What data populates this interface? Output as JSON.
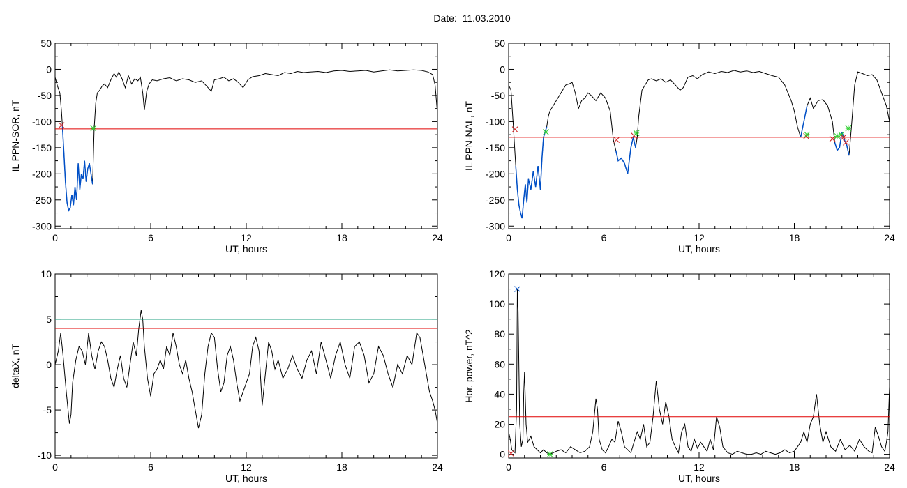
{
  "title": "Date:  11.03.2010",
  "colors": {
    "data": "#000000",
    "threshold": "#e00000",
    "event": "#0050c8",
    "start_marker": "#d02020",
    "end_marker": "#30d030",
    "alt_threshold": "#20a080"
  },
  "chart_data": [
    {
      "id": "sor",
      "type": "line",
      "xlabel": "UT, hours",
      "ylabel": "IL PPN-SOR, nT",
      "xlim": [
        0,
        24
      ],
      "ylim": [
        -305,
        50
      ],
      "xticks": [
        0,
        6,
        12,
        18,
        24
      ],
      "yticks": [
        50,
        0,
        -50,
        -100,
        -150,
        -200,
        -250,
        -300
      ],
      "threshold": -114,
      "series": [
        {
          "x": [
            0,
            0.15,
            0.3,
            0.4,
            0.45,
            0.55,
            0.65,
            0.75,
            0.85,
            0.95,
            1.05,
            1.15,
            1.25,
            1.35,
            1.45,
            1.55,
            1.65,
            1.75,
            1.85,
            1.95,
            2.05,
            2.15,
            2.25,
            2.35,
            2.45,
            2.55,
            2.65,
            2.8,
            2.95,
            3.1,
            3.3,
            3.5,
            3.7,
            3.85,
            4.0,
            4.2,
            4.4,
            4.6,
            4.8,
            5.0,
            5.2,
            5.35,
            5.5,
            5.6,
            5.75,
            5.9,
            6.1,
            6.4,
            6.8,
            7.2,
            7.6,
            8.0,
            8.4,
            8.8,
            9.2,
            9.6,
            9.8,
            10.0,
            10.3,
            10.6,
            10.9,
            11.2,
            11.5,
            11.8,
            12.1,
            12.4,
            12.8,
            13.2,
            13.6,
            14.0,
            14.4,
            14.8,
            15.2,
            15.6,
            16.0,
            16.5,
            17.0,
            17.5,
            18.0,
            18.5,
            19.0,
            19.5,
            20.0,
            20.5,
            21.0,
            21.5,
            22.0,
            22.5,
            23.0,
            23.4,
            23.7,
            23.85,
            24
          ],
          "y": [
            -15,
            -32,
            -45,
            -80,
            -105,
            -160,
            -215,
            -255,
            -270,
            -265,
            -240,
            -260,
            -225,
            -250,
            -180,
            -230,
            -200,
            -210,
            -175,
            -215,
            -190,
            -180,
            -200,
            -220,
            -115,
            -65,
            -45,
            -40,
            -32,
            -28,
            -35,
            -20,
            -8,
            -15,
            -5,
            -18,
            -35,
            -12,
            -28,
            -18,
            -22,
            -15,
            -45,
            -78,
            -42,
            -28,
            -20,
            -22,
            -18,
            -16,
            -22,
            -18,
            -20,
            -25,
            -22,
            -35,
            -42,
            -20,
            -18,
            -15,
            -22,
            -18,
            -25,
            -35,
            -20,
            -14,
            -12,
            -8,
            -10,
            -12,
            -6,
            -8,
            -4,
            -6,
            -5,
            -4,
            -6,
            -3,
            -2,
            -4,
            -3,
            -2,
            -5,
            -3,
            -1,
            -3,
            -2,
            -1,
            -2,
            -5,
            -10,
            -30,
            -85
          ]
        }
      ],
      "events": [
        {
          "from": 0.45,
          "to": 2.4
        }
      ],
      "markers": [
        {
          "x": 0.4,
          "y": -107,
          "kind": "start"
        },
        {
          "x": 2.4,
          "y": -113,
          "kind": "end"
        }
      ]
    },
    {
      "id": "nal",
      "type": "line",
      "xlabel": "UT, hours",
      "ylabel": "IL PPN-NAL, nT",
      "xlim": [
        0,
        24
      ],
      "ylim": [
        -305,
        50
      ],
      "xticks": [
        0,
        6,
        12,
        18,
        24
      ],
      "yticks": [
        50,
        0,
        -50,
        -100,
        -150,
        -200,
        -250,
        -300
      ],
      "threshold": -130,
      "series": [
        {
          "x": [
            0,
            0.15,
            0.3,
            0.45,
            0.55,
            0.65,
            0.75,
            0.85,
            0.95,
            1.05,
            1.15,
            1.25,
            1.4,
            1.55,
            1.7,
            1.85,
            2.0,
            2.1,
            2.2,
            2.3,
            2.4,
            2.5,
            2.6,
            2.8,
            3.0,
            3.2,
            3.4,
            3.6,
            3.8,
            4.0,
            4.2,
            4.4,
            4.6,
            4.8,
            5.0,
            5.2,
            5.5,
            5.8,
            6.1,
            6.4,
            6.6,
            6.75,
            6.9,
            7.1,
            7.3,
            7.5,
            7.7,
            7.85,
            8.0,
            8.1,
            8.2,
            8.4,
            8.6,
            8.8,
            9.0,
            9.3,
            9.6,
            9.9,
            10.2,
            10.5,
            10.8,
            11.0,
            11.3,
            11.6,
            11.9,
            12.2,
            12.6,
            13.0,
            13.4,
            13.8,
            14.2,
            14.6,
            15.0,
            15.4,
            15.8,
            16.2,
            16.6,
            17.0,
            17.4,
            17.8,
            18.0,
            18.2,
            18.4,
            18.6,
            18.8,
            19.0,
            19.2,
            19.5,
            19.8,
            20.1,
            20.4,
            20.55,
            20.7,
            20.85,
            21.0,
            21.15,
            21.3,
            21.45,
            21.6,
            21.8,
            22.0,
            22.3,
            22.6,
            22.9,
            23.2,
            23.5,
            23.8,
            24
          ],
          "y": [
            -30,
            -40,
            -110,
            -185,
            -230,
            -260,
            -275,
            -285,
            -250,
            -220,
            -255,
            -210,
            -230,
            -195,
            -225,
            -185,
            -230,
            -170,
            -130,
            -120,
            -110,
            -90,
            -80,
            -70,
            -60,
            -50,
            -40,
            -30,
            -28,
            -25,
            -45,
            -75,
            -60,
            -55,
            -45,
            -50,
            -60,
            -45,
            -55,
            -80,
            -135,
            -155,
            -175,
            -170,
            -180,
            -200,
            -150,
            -130,
            -150,
            -130,
            -90,
            -40,
            -30,
            -20,
            -18,
            -22,
            -18,
            -25,
            -20,
            -30,
            -40,
            -35,
            -15,
            -12,
            -18,
            -10,
            -5,
            -8,
            -4,
            -6,
            -2,
            -5,
            -3,
            -6,
            -4,
            -8,
            -12,
            -15,
            -30,
            -60,
            -80,
            -110,
            -130,
            -100,
            -70,
            -55,
            -75,
            -60,
            -58,
            -70,
            -100,
            -140,
            -155,
            -150,
            -120,
            -135,
            -145,
            -165,
            -110,
            -30,
            -5,
            -8,
            -12,
            -10,
            -20,
            -45,
            -70,
            -100
          ]
        }
      ],
      "events": [
        {
          "from": 0.45,
          "to": 2.4
        },
        {
          "from": 6.75,
          "to": 8.0
        },
        {
          "from": 18.4,
          "to": 18.8
        },
        {
          "from": 20.5,
          "to": 21.5
        }
      ],
      "markers": [
        {
          "x": 0.4,
          "y": -115,
          "kind": "start"
        },
        {
          "x": 2.35,
          "y": -120,
          "kind": "end"
        },
        {
          "x": 6.8,
          "y": -135,
          "kind": "start"
        },
        {
          "x": 7.9,
          "y": -127,
          "kind": "start"
        },
        {
          "x": 8.05,
          "y": -122,
          "kind": "end"
        },
        {
          "x": 18.75,
          "y": -128,
          "kind": "start"
        },
        {
          "x": 18.8,
          "y": -125,
          "kind": "end"
        },
        {
          "x": 20.4,
          "y": -133,
          "kind": "start"
        },
        {
          "x": 20.7,
          "y": -128,
          "kind": "end"
        },
        {
          "x": 20.95,
          "y": -125,
          "kind": "end"
        },
        {
          "x": 21.1,
          "y": -130,
          "kind": "start"
        },
        {
          "x": 21.25,
          "y": -140,
          "kind": "start"
        },
        {
          "x": 21.4,
          "y": -113,
          "kind": "end"
        }
      ]
    },
    {
      "id": "deltax",
      "type": "line",
      "xlabel": "UT, hours",
      "ylabel": "deltaX, nT",
      "xlim": [
        0,
        24
      ],
      "ylim": [
        -10.3,
        10
      ],
      "xticks": [
        0,
        6,
        12,
        18,
        24
      ],
      "yticks": [
        10,
        5,
        0,
        -5,
        -10
      ],
      "threshold": 4,
      "alt_threshold": 5,
      "series": [
        {
          "x": [
            0,
            0.2,
            0.35,
            0.5,
            0.7,
            0.9,
            1.0,
            1.1,
            1.3,
            1.5,
            1.7,
            1.9,
            2.1,
            2.3,
            2.5,
            2.7,
            2.9,
            3.1,
            3.3,
            3.5,
            3.7,
            3.9,
            4.1,
            4.3,
            4.5,
            4.7,
            4.9,
            5.1,
            5.25,
            5.4,
            5.5,
            5.6,
            5.8,
            6.0,
            6.2,
            6.4,
            6.6,
            6.8,
            7.0,
            7.2,
            7.4,
            7.6,
            7.8,
            8.0,
            8.2,
            8.4,
            8.6,
            8.8,
            9.0,
            9.2,
            9.4,
            9.6,
            9.8,
            10.0,
            10.2,
            10.4,
            10.6,
            10.8,
            11.0,
            11.2,
            11.4,
            11.6,
            11.8,
            12.0,
            12.2,
            12.4,
            12.6,
            12.8,
            13.0,
            13.2,
            13.4,
            13.6,
            13.8,
            14.0,
            14.3,
            14.6,
            14.9,
            15.2,
            15.5,
            15.8,
            16.1,
            16.4,
            16.7,
            17.0,
            17.3,
            17.6,
            17.9,
            18.2,
            18.5,
            18.8,
            19.1,
            19.4,
            19.7,
            20.0,
            20.3,
            20.6,
            20.9,
            21.2,
            21.5,
            21.8,
            22.1,
            22.4,
            22.7,
            22.9,
            23.1,
            23.3,
            23.5,
            23.7,
            23.85,
            24
          ],
          "y": [
            0,
            1.5,
            3.5,
            1,
            -3,
            -6.5,
            -5.5,
            -2,
            0.5,
            2,
            1.5,
            0,
            3.5,
            1,
            -0.5,
            1.5,
            2.5,
            2,
            0.5,
            -1.5,
            -2.5,
            -0.5,
            1,
            -1.5,
            -2.5,
            0,
            2.5,
            1,
            4,
            6,
            5,
            2,
            -1.5,
            -3.5,
            -1,
            -0.5,
            0.5,
            -0.5,
            2,
            1,
            3.5,
            2,
            0,
            -1,
            0.5,
            -1.5,
            -3,
            -5,
            -7,
            -5.5,
            -1,
            2,
            3.5,
            3,
            -0.5,
            -3,
            -2,
            1,
            2,
            0.5,
            -2,
            -4,
            -3,
            -2,
            -1,
            2,
            3,
            1.5,
            -4.5,
            -1,
            2.5,
            1.5,
            -0.5,
            0.5,
            -1.5,
            -0.5,
            1,
            -0.5,
            -1.5,
            0.5,
            1.5,
            -1,
            2.5,
            0.5,
            -1.5,
            1,
            2.5,
            0,
            -1.5,
            2,
            2.5,
            1,
            -2,
            -1,
            2,
            1,
            -1,
            -2.5,
            0,
            -1,
            1,
            0,
            3.5,
            3,
            1,
            -1,
            -3,
            -4,
            -5,
            -6.5
          ]
        }
      ]
    },
    {
      "id": "power",
      "type": "line",
      "xlabel": "UT, hours",
      "ylabel": "Hor. power, nT^2",
      "xlim": [
        0,
        24
      ],
      "ylim": [
        -2.5,
        120
      ],
      "xticks": [
        0,
        6,
        12,
        18,
        24
      ],
      "yticks": [
        120,
        100,
        80,
        60,
        40,
        20,
        0
      ],
      "threshold": 25,
      "series": [
        {
          "x": [
            0,
            0.1,
            0.2,
            0.3,
            0.4,
            0.5,
            0.55,
            0.6,
            0.65,
            0.7,
            0.8,
            0.9,
            0.95,
            1.0,
            1.1,
            1.2,
            1.4,
            1.6,
            1.8,
            2.0,
            2.2,
            2.4,
            2.6,
            2.8,
            3.0,
            3.3,
            3.6,
            3.9,
            4.2,
            4.5,
            4.8,
            5.1,
            5.3,
            5.5,
            5.6,
            5.7,
            5.9,
            6.1,
            6.3,
            6.5,
            6.7,
            6.9,
            7.1,
            7.3,
            7.5,
            7.7,
            7.9,
            8.1,
            8.3,
            8.5,
            8.7,
            8.9,
            9.1,
            9.3,
            9.5,
            9.7,
            9.9,
            10.1,
            10.3,
            10.5,
            10.7,
            10.9,
            11.1,
            11.3,
            11.5,
            11.7,
            11.9,
            12.1,
            12.3,
            12.5,
            12.7,
            12.9,
            13.1,
            13.3,
            13.5,
            13.8,
            14.1,
            14.4,
            14.7,
            15.0,
            15.3,
            15.6,
            15.9,
            16.2,
            16.5,
            16.8,
            17.1,
            17.4,
            17.7,
            18.0,
            18.2,
            18.4,
            18.6,
            18.8,
            19.0,
            19.2,
            19.4,
            19.6,
            19.8,
            20.0,
            20.3,
            20.6,
            20.9,
            21.2,
            21.5,
            21.8,
            22.1,
            22.4,
            22.7,
            22.9,
            23.1,
            23.3,
            23.5,
            23.7,
            23.8,
            23.9,
            24
          ],
          "y": [
            15,
            10,
            3,
            2,
            1,
            30,
            110,
            95,
            55,
            20,
            5,
            10,
            40,
            55,
            20,
            8,
            12,
            5,
            3,
            1,
            3,
            1,
            0,
            1,
            2,
            3,
            1,
            5,
            3,
            1,
            2,
            5,
            15,
            37,
            30,
            10,
            3,
            1,
            5,
            10,
            8,
            22,
            15,
            5,
            3,
            1,
            8,
            15,
            10,
            20,
            5,
            8,
            25,
            49,
            30,
            20,
            35,
            25,
            10,
            5,
            1,
            15,
            20,
            5,
            2,
            10,
            4,
            8,
            5,
            2,
            10,
            3,
            25,
            18,
            5,
            1,
            0,
            2,
            1,
            0,
            0,
            1,
            0,
            2,
            1,
            0,
            1,
            3,
            1,
            2,
            5,
            8,
            15,
            8,
            20,
            25,
            40,
            20,
            8,
            15,
            5,
            2,
            10,
            3,
            6,
            2,
            10,
            5,
            2,
            1,
            18,
            12,
            5,
            2,
            8,
            15,
            45
          ]
        }
      ],
      "markers": [
        {
          "x": 0.55,
          "y": 110,
          "kind": "peak"
        },
        {
          "x": 0.15,
          "y": 0.5,
          "kind": "start"
        },
        {
          "x": 2.6,
          "y": 0,
          "kind": "end"
        }
      ]
    }
  ]
}
